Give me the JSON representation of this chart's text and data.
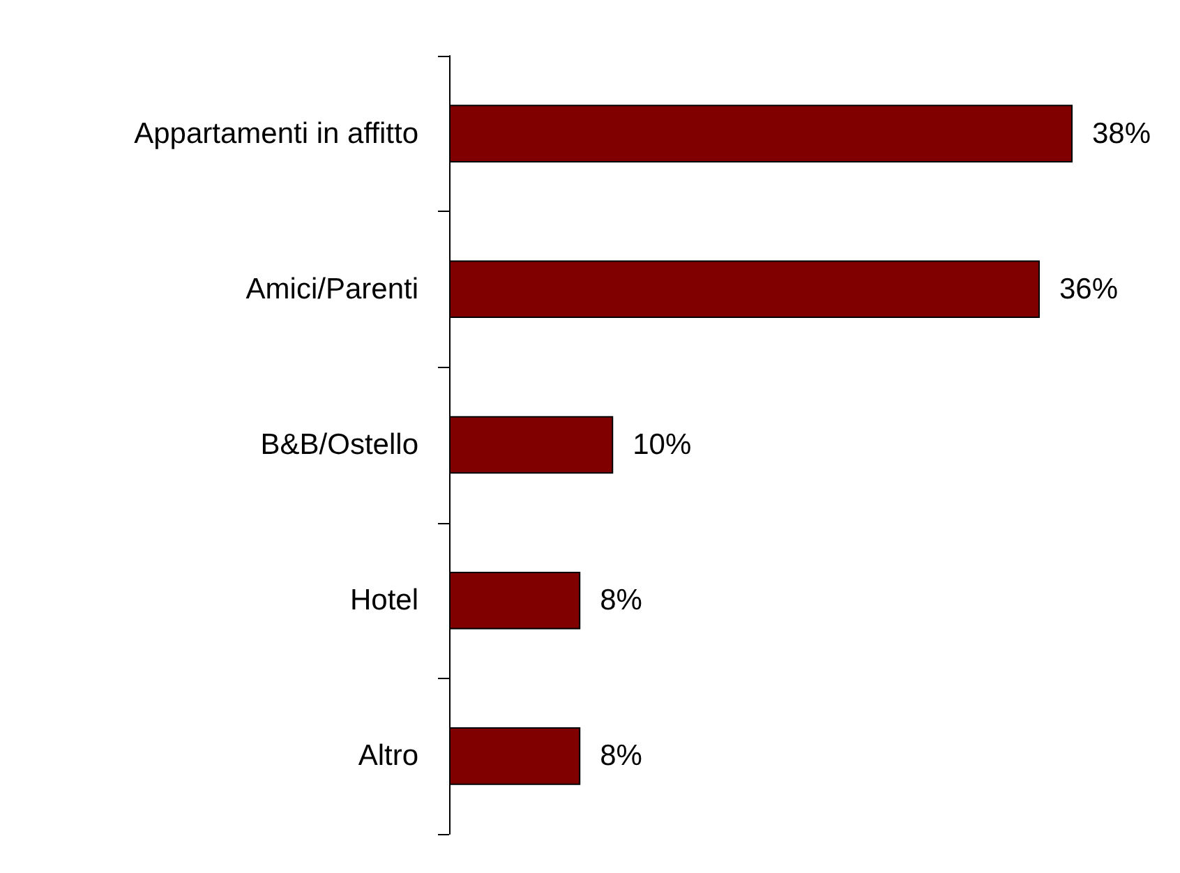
{
  "chart_data": {
    "type": "bar",
    "orientation": "horizontal",
    "categories": [
      "Appartamenti in affitto",
      "Amici/Parenti",
      "B&B/Ostello",
      "Hotel",
      "Altro"
    ],
    "values": [
      38,
      36,
      10,
      8,
      8
    ],
    "value_labels": [
      "38%",
      "36%",
      "10%",
      "8%",
      "8%"
    ],
    "color": "#800000"
  }
}
